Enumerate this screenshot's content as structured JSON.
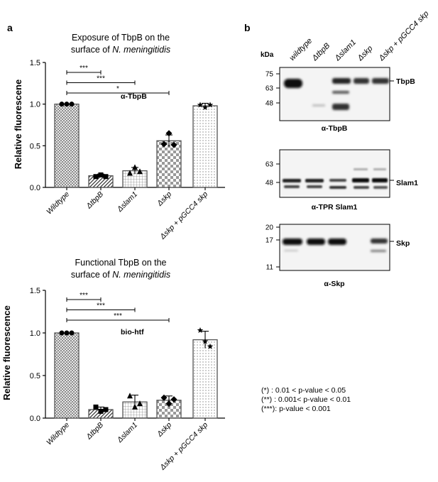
{
  "panel_a_letter": "a",
  "panel_b_letter": "b",
  "chart_data": [
    {
      "type": "bar",
      "title_lines": [
        "Exposure of TbpB on the",
        "surface of N. meningitidis"
      ],
      "title_italic_part": "N. meningitidis",
      "ylabel": "Relative fluorescene",
      "annotation": "α-TbpB",
      "ylim": [
        0,
        1.5
      ],
      "yticks": [
        "0.0",
        "0.5",
        "1.0",
        "1.5"
      ],
      "categories": [
        "Wildtype",
        "ΔtbpB",
        "Δslam1",
        "Δskp",
        "Δskp + pGCC4 skp"
      ],
      "values": [
        1.0,
        0.14,
        0.2,
        0.56,
        0.98
      ],
      "errors": [
        0.0,
        0.02,
        0.04,
        0.07,
        0.03
      ],
      "points": [
        [
          1.0,
          1.0,
          1.0
        ],
        [
          0.13,
          0.15,
          0.13
        ],
        [
          0.17,
          0.24,
          0.19
        ],
        [
          0.52,
          0.65,
          0.51
        ],
        [
          0.99,
          0.96,
          0.99
        ]
      ],
      "markers": [
        "circle",
        "square",
        "triangle",
        "diamond",
        "star"
      ],
      "significance": [
        {
          "from": 0,
          "to": 1,
          "label": "***"
        },
        {
          "from": 0,
          "to": 2,
          "label": "***"
        },
        {
          "from": 0,
          "to": 3,
          "label": "*"
        }
      ]
    },
    {
      "type": "bar",
      "title_lines": [
        "Functional TbpB on the",
        "surface of N. meningitidis"
      ],
      "title_italic_part": "N. meningitidis",
      "ylabel": "Relative fluorescence",
      "annotation": "bio-htf",
      "ylim": [
        0,
        1.5
      ],
      "yticks": [
        "0.0",
        "0.5",
        "1.0",
        "1.5"
      ],
      "categories": [
        "Wildtype",
        "ΔtbpB",
        "Δslam1",
        "Δskp",
        "Δskp + pGCC4 skp"
      ],
      "values": [
        1.0,
        0.1,
        0.19,
        0.21,
        0.92
      ],
      "errors": [
        0.0,
        0.03,
        0.08,
        0.05,
        0.1
      ],
      "points": [
        [
          1.0,
          1.0,
          1.0
        ],
        [
          0.13,
          0.08,
          0.1
        ],
        [
          0.26,
          0.13,
          0.17
        ],
        [
          0.24,
          0.17,
          0.22
        ],
        [
          1.03,
          0.9,
          0.84
        ]
      ],
      "markers": [
        "circle",
        "square",
        "triangle",
        "diamond",
        "star"
      ],
      "significance": [
        {
          "from": 0,
          "to": 1,
          "label": "***"
        },
        {
          "from": 0,
          "to": 2,
          "label": "***"
        },
        {
          "from": 0,
          "to": 3,
          "label": "***"
        }
      ]
    }
  ],
  "blots": {
    "kda_label": "kDa",
    "lanes": [
      "wildtype",
      "ΔtbpB",
      "Δslam1",
      "Δskp",
      "Δskp + pGCC4 skp"
    ],
    "panels": [
      {
        "caption": "α-TbpB",
        "protein": "TbpB",
        "markers": [
          "75",
          "63",
          "48"
        ]
      },
      {
        "caption": "α-TPR Slam1",
        "protein": "Slam1",
        "markers": [
          "63",
          "48"
        ]
      },
      {
        "caption": "α-Skp",
        "protein": "Skp",
        "markers": [
          "20",
          "17",
          "11"
        ]
      }
    ]
  },
  "significance_legend": [
    "(*)   : 0.01 < p-value < 0.05",
    "(**)  : 0.001< p-value < 0.01",
    "(***): p-value < 0.001"
  ]
}
